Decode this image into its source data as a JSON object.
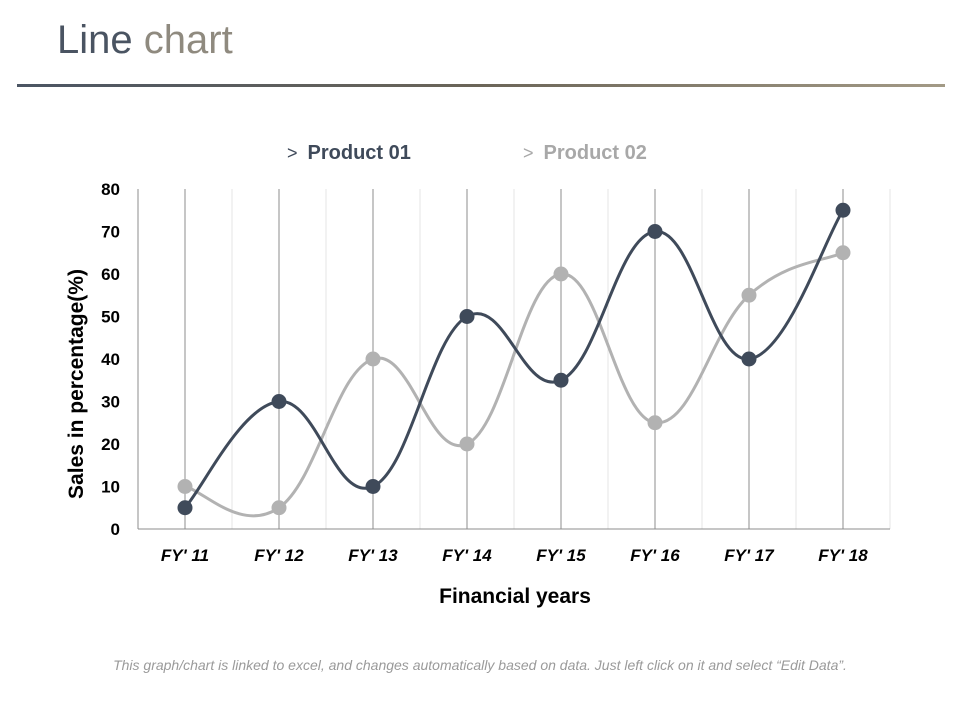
{
  "slide": {
    "title_part1": "Line",
    "title_part2": "chart",
    "footnote": "This graph/chart is linked to excel, and changes automatically based on data. Just left click on it and select “Edit Data”."
  },
  "legend": {
    "marker": ">",
    "items": [
      "Product 01",
      "Product 02"
    ]
  },
  "colors": {
    "product_01": "#3f4a5a",
    "product_02": "#b2b2b2",
    "gridline": "#8c8c8c",
    "minor_gridline": "#e6e6e6",
    "axis_text": "#000000"
  },
  "chart_data": {
    "type": "line",
    "title": "",
    "xlabel": "Financial years",
    "ylabel": "Sales in percentage(%)",
    "categories": [
      "FY' 11",
      "FY' 12",
      "FY' 13",
      "FY' 14",
      "FY' 15",
      "FY' 16",
      "FY' 17",
      "FY' 18"
    ],
    "ylim": [
      0,
      80
    ],
    "yticks": [
      0,
      10,
      20,
      30,
      40,
      50,
      60,
      70,
      80
    ],
    "smooth": true,
    "grid": "vertical",
    "legend_position": "top",
    "series": [
      {
        "name": "Product 01",
        "values": [
          5,
          30,
          10,
          50,
          35,
          70,
          40,
          75
        ]
      },
      {
        "name": "Product 02",
        "values": [
          10,
          5,
          40,
          20,
          60,
          25,
          55,
          65
        ]
      }
    ]
  }
}
